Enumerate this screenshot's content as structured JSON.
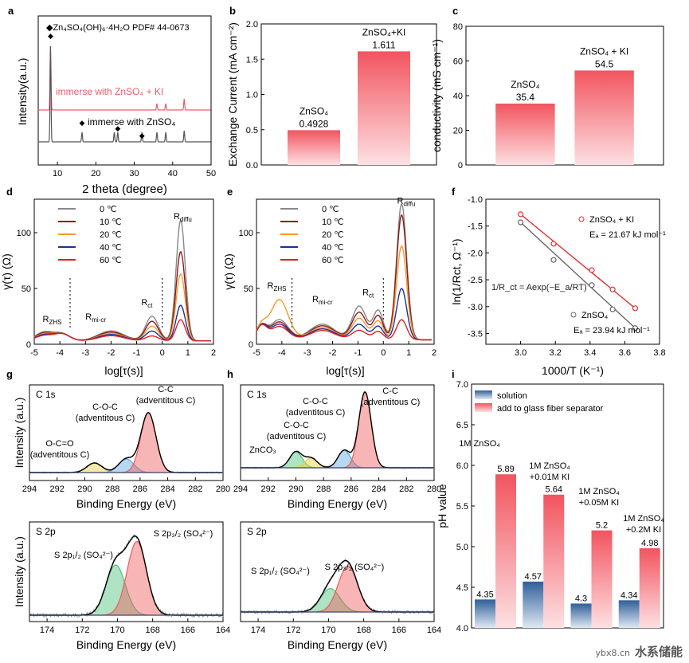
{
  "watermark": {
    "site": "ybx8.cn",
    "name": "水系储能"
  },
  "chart_data": [
    {
      "id": "a",
      "label": "a",
      "type": "line",
      "xlabel": "2 theta (degree)",
      "ylabel": "Intensity(a.u.)",
      "xlim": [
        5,
        50
      ],
      "xticks": [
        10,
        20,
        30,
        40,
        50
      ],
      "legend_title": "◆Zn₄SO₄(OH)₆·4H₂O  PDF# 44-0673",
      "series": [
        {
          "name": "immerse with ZnSO₄ + KI",
          "color": "#f05a6a",
          "peaks": [
            8.2,
            35.9,
            38.2,
            43.0
          ]
        },
        {
          "name": "immerse with ZnSO₄",
          "color": "#555555",
          "peaks": [
            8.2,
            16.4,
            24.8,
            25.7,
            32.0,
            35.9,
            38.2,
            43.0
          ]
        }
      ]
    },
    {
      "id": "b",
      "label": "b",
      "type": "bar",
      "ylabel": "Exchange Current (mA cm⁻²)",
      "ylim": [
        0,
        2.0
      ],
      "yticks": [
        0.0,
        0.5,
        1.0,
        1.5,
        2.0
      ],
      "categories": [
        "ZnSO₄",
        "ZnSO₄+KI"
      ],
      "values": [
        0.4928,
        1.611
      ],
      "value_labels": [
        "0.4928",
        "1.611"
      ]
    },
    {
      "id": "c",
      "label": "c",
      "type": "bar",
      "ylabel": "conductivity (mS cm⁻¹)",
      "ylim": [
        0,
        80
      ],
      "yticks": [
        0,
        20,
        40,
        60,
        80
      ],
      "categories": [
        "ZnSO₄",
        "ZnSO₄ + KI"
      ],
      "values": [
        35.4,
        54.5
      ],
      "value_labels": [
        "35.4",
        "54.5"
      ]
    },
    {
      "id": "d",
      "label": "d",
      "type": "line",
      "xlabel": "log[τ(s)]",
      "ylabel": "γ(τ) (Ω)",
      "xlim": [
        -5,
        2
      ],
      "ylim": [
        0,
        130
      ],
      "xticks": [
        -5,
        -4,
        -3,
        -2,
        -1,
        0,
        1,
        2
      ],
      "yticks": [
        0,
        50,
        100
      ],
      "annotations": [
        "R_ZHS",
        "R_mi-cr",
        "R_ct",
        "R_diffu"
      ],
      "series": [
        {
          "name": "0 ℃",
          "color": "#888888",
          "peak": 108
        },
        {
          "name": "10 ℃",
          "color": "#8b1a1a",
          "peak": 80
        },
        {
          "name": "20 ℃",
          "color": "#f39a2b",
          "peak": 60
        },
        {
          "name": "40 ℃",
          "color": "#1c2f9c",
          "peak": 32
        },
        {
          "name": "60 ℃",
          "color": "#e02020",
          "peak": 19
        }
      ]
    },
    {
      "id": "e",
      "label": "e",
      "type": "line",
      "xlabel": "log[τ(s)]",
      "ylabel": "γ(τ) (Ω)",
      "xlim": [
        -5,
        2
      ],
      "ylim": [
        0,
        130
      ],
      "xticks": [
        -5,
        -4,
        -3,
        -2,
        -1,
        0,
        1,
        2
      ],
      "yticks": [
        0,
        50,
        100
      ],
      "annotations": [
        "R_ZHS",
        "R_mi-cr",
        "R_ct",
        "R_diffu"
      ],
      "series": [
        {
          "name": "0 ℃",
          "color": "#888888",
          "peak": 122
        },
        {
          "name": "10 ℃",
          "color": "#8b1a1a",
          "peak": 112
        },
        {
          "name": "20 ℃",
          "color": "#f39a2b",
          "peak": 84
        },
        {
          "name": "40 ℃",
          "color": "#1c2f9c",
          "peak": 46
        },
        {
          "name": "60 ℃",
          "color": "#e02020",
          "peak": 18
        }
      ]
    },
    {
      "id": "f",
      "label": "f",
      "type": "scatter",
      "xlabel": "1000/T (K⁻¹)",
      "ylabel": "ln(1/Rct, Ω⁻¹)",
      "xlim": [
        2.8,
        3.8
      ],
      "ylim": [
        -3.7,
        -1.0
      ],
      "xticks": [
        3.0,
        3.2,
        3.4,
        3.6,
        3.8
      ],
      "yticks": [
        -3.5,
        -3.0,
        -2.5,
        -2.0,
        -1.5,
        -1.0
      ],
      "equation": "1/R_ct = Aexp(−E_a/RT)",
      "series": [
        {
          "name": "ZnSO₄ + KI",
          "ea": "Eₐ = 21.67 kJ mol⁻¹",
          "color": "#e03030",
          "x": [
            3.0,
            3.19,
            3.41,
            3.53,
            3.66
          ],
          "y": [
            -1.28,
            -1.83,
            -2.32,
            -2.68,
            -3.03
          ]
        },
        {
          "name": "ZnSO₄",
          "ea": "Eₐ = 23.94 kJ mol⁻¹",
          "color": "#666666",
          "x": [
            3.0,
            3.19,
            3.41,
            3.53,
            3.66
          ],
          "y": [
            -1.43,
            -2.13,
            -2.6,
            -3.05,
            -3.4
          ]
        }
      ]
    },
    {
      "id": "g_c1s",
      "label": "g",
      "type": "area",
      "panel_title": "C 1s",
      "xlabel": "Binding Energy (eV)",
      "ylabel": "Intensity (a.u.)",
      "xlim": [
        294,
        280
      ],
      "xticks": [
        294,
        292,
        290,
        288,
        286,
        284,
        282,
        280
      ],
      "peaks": [
        {
          "name": "O-C=O\n(adventitous C)",
          "center": 289.3,
          "height": 0.12,
          "color": "#e8d040"
        },
        {
          "name": "C-O-C\n(adventitous C)",
          "center": 287.0,
          "height": 0.17,
          "color": "#5aaadd"
        },
        {
          "name": "C-C\n(adventitous C)",
          "center": 285.4,
          "height": 0.75,
          "color": "#ef5a5a"
        }
      ]
    },
    {
      "id": "h_c1s",
      "label": "h",
      "type": "area",
      "panel_title": "C 1s",
      "xlabel": "Binding Energy (eV)",
      "xlim": [
        294,
        280
      ],
      "xticks": [
        294,
        292,
        290,
        288,
        286,
        284,
        282,
        280
      ],
      "peaks": [
        {
          "name": "ZnCO₃",
          "center": 290.0,
          "height": 0.2,
          "color": "#4cc07a"
        },
        {
          "name": "C-O-C\n(adventitous C)",
          "center": 288.9,
          "height": 0.12,
          "color": "#e8d040"
        },
        {
          "name": "C-O-C\n(adventitous C)",
          "center": 286.5,
          "height": 0.22,
          "color": "#5aaadd"
        },
        {
          "name": "C-C\n(adventitous C)",
          "center": 285.0,
          "height": 0.95,
          "color": "#ef5a5a"
        }
      ]
    },
    {
      "id": "g_s2p",
      "label": "",
      "type": "area",
      "panel_title": "S 2p",
      "xlabel": "Binding Energy (eV)",
      "ylabel": "Intensity (a.u.)",
      "xlim": [
        175,
        164
      ],
      "xticks": [
        174,
        172,
        170,
        168,
        166,
        164
      ],
      "peaks": [
        {
          "name": "S 2p₁/₂ (SO₄²⁻)",
          "center": 170.1,
          "height": 0.6,
          "color": "#4cc07a"
        },
        {
          "name": "S 2p₃/₂ (SO₄²⁻)",
          "center": 168.9,
          "height": 0.88,
          "color": "#ef5a5a"
        }
      ]
    },
    {
      "id": "h_s2p",
      "label": "",
      "type": "area",
      "panel_title": "S 2p",
      "xlabel": "Binding Energy (eV)",
      "xlim": [
        175,
        164
      ],
      "xticks": [
        174,
        172,
        170,
        168,
        166,
        164
      ],
      "peaks": [
        {
          "name": "S 2p₁/₂ (SO₄²⁻)",
          "center": 169.9,
          "height": 0.28,
          "color": "#4cc07a"
        },
        {
          "name": "S 2p₃/₂ (SO₄²⁻)",
          "center": 168.9,
          "height": 0.55,
          "color": "#ef5a5a"
        }
      ]
    },
    {
      "id": "i",
      "label": "i",
      "type": "bar",
      "ylabel": "pH value",
      "ylim": [
        4.0,
        7.0
      ],
      "yticks": [
        4.0,
        4.5,
        5.0,
        5.5,
        6.0,
        6.5,
        7.0
      ],
      "categories": [
        "1M ZnSO₄",
        "1M ZnSO₄\n+0.01M KI",
        "1M ZnSO₄\n+0.05M KI",
        "1M ZnSO₄\n+0.2M KI"
      ],
      "series": [
        {
          "name": "solution",
          "values": [
            4.35,
            4.57,
            4.3,
            4.34
          ],
          "color": "#2f5f99"
        },
        {
          "name": "add to glass fiber separator",
          "values": [
            5.89,
            5.64,
            5.2,
            4.98
          ],
          "color": "#f05a64"
        }
      ]
    }
  ]
}
